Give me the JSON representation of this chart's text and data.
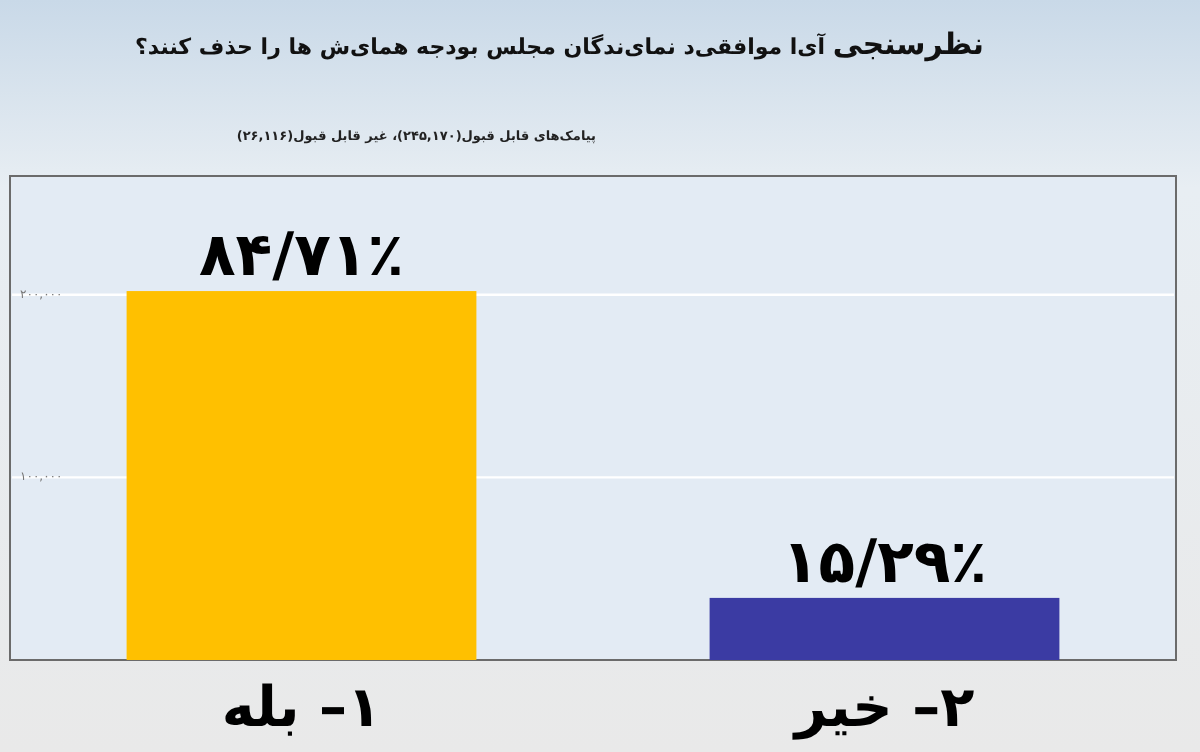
{
  "chart_data": {
    "type": "bar",
    "title": "**نظرسنجی** آی‌ا موافقی‌د نمای‌ندگان مجلس بودجه همای‌ش ها را حذف کنند؟",
    "subtitle": "پیامک‌های قابل قبول(۲۴۵,۱۷۰)، غیر قابل قبول(۲۶,۱۱۶)",
    "categories": [
      "۱– بله",
      "۲– خیر"
    ],
    "values": [
      202000,
      34000
    ],
    "colors": [
      "#ffc000",
      "#3b3ba3"
    ],
    "value_labels": [
      "۸۴/۷۱٪",
      "۱۵/۲۹٪"
    ],
    "ylim": [
      0,
      265000
    ],
    "yticks": [
      {
        "value": 100000,
        "label": "۱۰۰,۰۰۰"
      },
      {
        "value": 200000,
        "label": "۲۰۰,۰۰۰"
      }
    ],
    "grid": "y"
  }
}
